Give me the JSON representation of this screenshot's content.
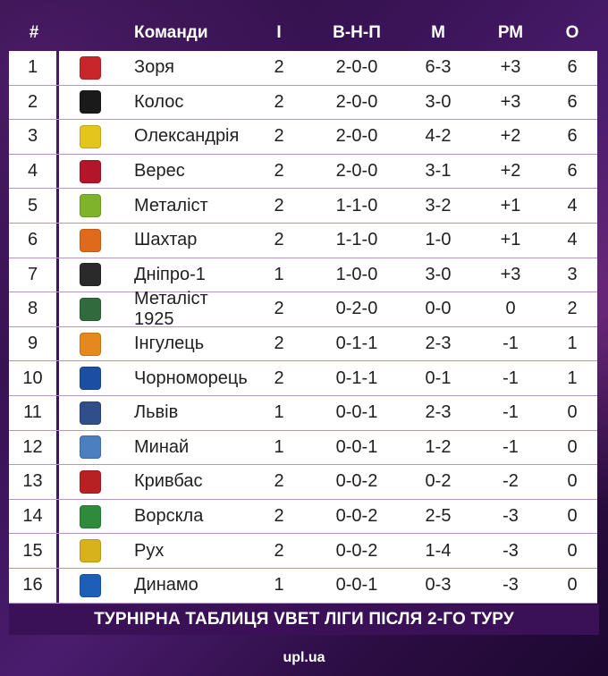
{
  "headers": {
    "pos": "#",
    "team": "Команди",
    "played": "І",
    "wdl": "В-Н-П",
    "goals": "М",
    "diff": "РМ",
    "points": "О"
  },
  "rows": [
    {
      "pos": "1",
      "team": "Зоря",
      "played": "2",
      "wdl": "2-0-0",
      "goals": "6-3",
      "diff": "+3",
      "points": "6",
      "logo_icon": "zorya-crest-icon",
      "logo_color": "#c9262c"
    },
    {
      "pos": "2",
      "team": "Колос",
      "played": "2",
      "wdl": "2-0-0",
      "goals": "3-0",
      "diff": "+3",
      "points": "6",
      "logo_icon": "kolos-crest-icon",
      "logo_color": "#1a1a1a"
    },
    {
      "pos": "3",
      "team": "Олександрія",
      "played": "2",
      "wdl": "2-0-0",
      "goals": "4-2",
      "diff": "+2",
      "points": "6",
      "logo_icon": "oleksandriya-crest-icon",
      "logo_color": "#e3c51d"
    },
    {
      "pos": "4",
      "team": "Верес",
      "played": "2",
      "wdl": "2-0-0",
      "goals": "3-1",
      "diff": "+2",
      "points": "6",
      "logo_icon": "veres-crest-icon",
      "logo_color": "#b3162b"
    },
    {
      "pos": "5",
      "team": "Металіст",
      "played": "2",
      "wdl": "1-1-0",
      "goals": "3-2",
      "diff": "+1",
      "points": "4",
      "logo_icon": "metalist-crest-icon",
      "logo_color": "#7fb32b"
    },
    {
      "pos": "6",
      "team": "Шахтар",
      "played": "2",
      "wdl": "1-1-0",
      "goals": "1-0",
      "diff": "+1",
      "points": "4",
      "logo_icon": "shakhtar-crest-icon",
      "logo_color": "#e06a1c"
    },
    {
      "pos": "7",
      "team": "Дніпро-1",
      "played": "1",
      "wdl": "1-0-0",
      "goals": "3-0",
      "diff": "+3",
      "points": "3",
      "logo_icon": "dnipro1-crest-icon",
      "logo_color": "#2a2a2a"
    },
    {
      "pos": "8",
      "team": "Металіст 1925",
      "played": "2",
      "wdl": "0-2-0",
      "goals": "0-0",
      "diff": "0",
      "points": "2",
      "logo_icon": "metalist1925-crest-icon",
      "logo_color": "#2f6b3c"
    },
    {
      "pos": "9",
      "team": "Інгулець",
      "played": "2",
      "wdl": "0-1-1",
      "goals": "2-3",
      "diff": "-1",
      "points": "1",
      "logo_icon": "inhulets-crest-icon",
      "logo_color": "#e5891f"
    },
    {
      "pos": "10",
      "team": "Чорноморець",
      "played": "2",
      "wdl": "0-1-1",
      "goals": "0-1",
      "diff": "-1",
      "points": "1",
      "logo_icon": "chornomorets-crest-icon",
      "logo_color": "#1c4fa3"
    },
    {
      "pos": "11",
      "team": "Львів",
      "played": "1",
      "wdl": "0-0-1",
      "goals": "2-3",
      "diff": "-1",
      "points": "0",
      "logo_icon": "lviv-crest-icon",
      "logo_color": "#2f4e8a"
    },
    {
      "pos": "12",
      "team": "Минай",
      "played": "1",
      "wdl": "0-0-1",
      "goals": "1-2",
      "diff": "-1",
      "points": "0",
      "logo_icon": "mynai-crest-icon",
      "logo_color": "#4b7fc0"
    },
    {
      "pos": "13",
      "team": "Кривбас",
      "played": "2",
      "wdl": "0-0-2",
      "goals": "0-2",
      "diff": "-2",
      "points": "0",
      "logo_icon": "kryvbas-crest-icon",
      "logo_color": "#b82024"
    },
    {
      "pos": "14",
      "team": "Ворскла",
      "played": "2",
      "wdl": "0-0-2",
      "goals": "2-5",
      "diff": "-3",
      "points": "0",
      "logo_icon": "vorskla-crest-icon",
      "logo_color": "#2e8b3a"
    },
    {
      "pos": "15",
      "team": "Рух",
      "played": "2",
      "wdl": "0-0-2",
      "goals": "1-4",
      "diff": "-3",
      "points": "0",
      "logo_icon": "rukh-crest-icon",
      "logo_color": "#d8b21a"
    },
    {
      "pos": "16",
      "team": "Динамо",
      "played": "1",
      "wdl": "0-0-1",
      "goals": "0-3",
      "diff": "-3",
      "points": "0",
      "logo_icon": "dynamo-crest-icon",
      "logo_color": "#1d5fb8"
    }
  ],
  "footer": {
    "caption": "ТУРНІРНА ТАБЛИЦЯ VBET ЛІГИ ПІСЛЯ 2-ГО ТУРУ",
    "brand": "upl.ua"
  },
  "colors": {
    "background": "#3b1458",
    "row_background": "#ffffff",
    "footer_bar": "#3a1156",
    "header_text": "#ffffff"
  }
}
